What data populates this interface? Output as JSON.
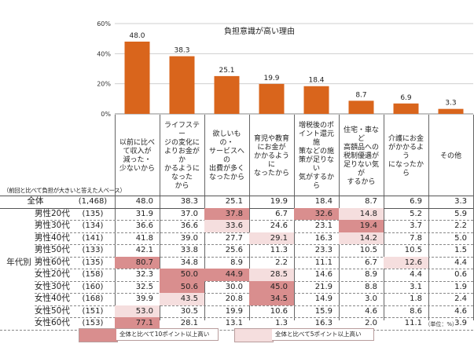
{
  "chart_data": {
    "type": "bar",
    "title": "負担意識が高い理由",
    "ylim": [
      0,
      60
    ],
    "yticks": [
      "0%",
      "20%",
      "40%",
      "60%"
    ],
    "categories": [
      "以前に比べて収入が減った・少ないから",
      "ライフステージの変化によりお金がかかるようになったから",
      "欲しいもの・サービスへの出費が多くなったから",
      "育児や教育にお金がかかるようになったから",
      "増税後のポイント還元施策などの施策が足りない気がするから",
      "住宅・車など高額品への税制優遇が足りない気がするから",
      "介護にお金がかかるようになったから",
      "その他"
    ],
    "values": [
      48.0,
      38.3,
      25.1,
      19.9,
      18.4,
      8.7,
      6.9,
      3.3
    ],
    "bar_color": "#d9651c"
  },
  "column_headers": [
    [
      "以前に比べ",
      "て収入が",
      "減った・",
      "少ないから"
    ],
    [
      "ライフステー",
      "ジの変化に",
      "よりお金がか",
      "かるように",
      "なった",
      "から"
    ],
    [
      "欲しいもの・",
      "サービスへの",
      "出費が多く",
      "なったから"
    ],
    [
      "育児や教育",
      "にお金が",
      "かかるように",
      "なったから"
    ],
    [
      "増税後のポ",
      "イント還元施",
      "策などの施",
      "策が足りない",
      "気がするから"
    ],
    [
      "住宅・車など",
      "高額品への",
      "税制優遇が",
      "足りない気が",
      "するから"
    ],
    [
      "介護にお金",
      "がかかるよう",
      "になったから"
    ],
    [
      "その他"
    ]
  ],
  "base_note": "（前回と比べて負担が大きいと答えた人ベース）",
  "table": {
    "group_label": "年代別",
    "rows": [
      {
        "name": "全体",
        "n": "(1,468)",
        "values": [
          "48.0",
          "38.3",
          "25.1",
          "19.9",
          "18.4",
          "8.7",
          "6.9",
          "3.3"
        ],
        "hl": [
          0,
          0,
          0,
          0,
          0,
          0,
          0,
          0
        ]
      },
      {
        "name": "男性20代",
        "n": "(135)",
        "values": [
          "31.9",
          "37.0",
          "37.8",
          "6.7",
          "32.6",
          "14.8",
          "5.2",
          "5.9"
        ],
        "hl": [
          0,
          0,
          2,
          0,
          2,
          1,
          0,
          0
        ]
      },
      {
        "name": "男性30代",
        "n": "(134)",
        "values": [
          "36.6",
          "36.6",
          "33.6",
          "24.6",
          "23.1",
          "19.4",
          "3.7",
          "2.2"
        ],
        "hl": [
          0,
          0,
          1,
          0,
          0,
          2,
          0,
          0
        ]
      },
      {
        "name": "男性40代",
        "n": "(141)",
        "values": [
          "41.8",
          "39.0",
          "27.7",
          "29.1",
          "16.3",
          "14.2",
          "7.8",
          "5.0"
        ],
        "hl": [
          0,
          0,
          0,
          1,
          0,
          1,
          0,
          0
        ]
      },
      {
        "name": "男性50代",
        "n": "(133)",
        "values": [
          "42.1",
          "33.8",
          "25.6",
          "11.3",
          "23.3",
          "10.5",
          "10.5",
          "1.5"
        ],
        "hl": [
          0,
          0,
          0,
          0,
          0,
          0,
          0,
          0
        ]
      },
      {
        "name": "男性60代",
        "n": "(135)",
        "values": [
          "80.7",
          "34.8",
          "8.9",
          "2.2",
          "11.1",
          "6.7",
          "12.6",
          "4.4"
        ],
        "hl": [
          2,
          0,
          0,
          0,
          0,
          0,
          1,
          0
        ]
      },
      {
        "name": "女性20代",
        "n": "(158)",
        "values": [
          "32.3",
          "50.0",
          "44.9",
          "28.5",
          "14.6",
          "8.9",
          "4.4",
          "0.6"
        ],
        "hl": [
          0,
          2,
          2,
          1,
          0,
          0,
          0,
          0
        ]
      },
      {
        "name": "女性30代",
        "n": "(160)",
        "values": [
          "32.5",
          "50.6",
          "30.0",
          "45.0",
          "21.9",
          "8.8",
          "3.1",
          "1.9"
        ],
        "hl": [
          0,
          2,
          0,
          2,
          0,
          0,
          0,
          0
        ]
      },
      {
        "name": "女性40代",
        "n": "(168)",
        "values": [
          "39.9",
          "43.5",
          "20.8",
          "34.5",
          "14.9",
          "3.0",
          "1.8",
          "2.4"
        ],
        "hl": [
          0,
          1,
          0,
          2,
          0,
          0,
          0,
          0
        ]
      },
      {
        "name": "女性50代",
        "n": "(151)",
        "values": [
          "53.0",
          "30.5",
          "19.9",
          "10.6",
          "15.9",
          "4.6",
          "8.6",
          "4.6"
        ],
        "hl": [
          1,
          0,
          0,
          0,
          0,
          0,
          0,
          0
        ]
      },
      {
        "name": "女性60代",
        "n": "(153)",
        "values": [
          "77.1",
          "28.1",
          "13.1",
          "1.3",
          "16.3",
          "2.0",
          "11.1",
          "3.9"
        ],
        "hl": [
          2,
          0,
          0,
          0,
          0,
          0,
          0,
          0
        ]
      }
    ]
  },
  "unit_note": "（単位：%）",
  "legend": [
    {
      "label": "全体と比べて10ポイント以上高い",
      "color": "#d98e8e"
    },
    {
      "label": "全体と比べて5ポイント以上高い",
      "color": "#f5dede"
    }
  ]
}
